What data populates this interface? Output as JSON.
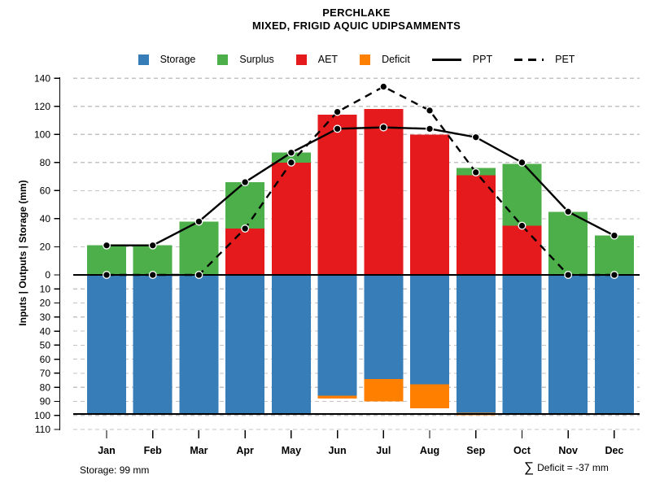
{
  "title": {
    "line1": "PERCHLAKE",
    "line2": "MIXED, FRIGID AQUIC UDIPSAMMENTS"
  },
  "legend": {
    "items": [
      {
        "label": "Storage",
        "swatch": "box",
        "color": "#377EB8"
      },
      {
        "label": "Surplus",
        "swatch": "box",
        "color": "#4DAF4A"
      },
      {
        "label": "AET",
        "swatch": "box",
        "color": "#E41A1C"
      },
      {
        "label": "Deficit",
        "swatch": "box",
        "color": "#FF7F00"
      },
      {
        "label": "PPT",
        "swatch": "line-solid",
        "color": "#000000"
      },
      {
        "label": "PET",
        "swatch": "line-dashed",
        "color": "#000000"
      }
    ]
  },
  "y_axis": {
    "label": "Inputs | Outputs | Storage   (mm)",
    "upper_ticks": [
      140,
      120,
      100,
      80,
      60,
      40,
      20
    ],
    "lower_ticks": [
      0,
      10,
      20,
      30,
      40,
      50,
      60,
      70,
      80,
      90,
      100,
      110
    ]
  },
  "footer": {
    "storage_note": "Storage: 99 mm",
    "deficit_sigma": "∑",
    "deficit_note": "Deficit = -37 mm"
  },
  "chart_data": {
    "type": "bar+line monthly water balance",
    "title": "PERCHLAKE",
    "subtitle": "MIXED, FRIGID AQUIC UDIPSAMMENTS",
    "ylabel": "Inputs | Outputs | Storage   (mm)",
    "units": "mm",
    "ylim": [
      -110,
      140
    ],
    "grid": "horizontal dashed",
    "legend_position": "top",
    "categories": [
      "Jan",
      "Feb",
      "Mar",
      "Apr",
      "May",
      "Jun",
      "Jul",
      "Aug",
      "Sep",
      "Oct",
      "Nov",
      "Dec"
    ],
    "series": [
      {
        "name": "AET",
        "type": "bar",
        "stack": "positive",
        "color": "#E41A1C",
        "values": [
          0,
          0,
          0,
          33,
          80,
          114,
          118,
          100,
          71,
          35,
          0,
          0
        ]
      },
      {
        "name": "Surplus",
        "type": "bar",
        "stack": "positive",
        "color": "#4DAF4A",
        "values": [
          21,
          21,
          38,
          33,
          7,
          0,
          0,
          0,
          5,
          44,
          45,
          28
        ]
      },
      {
        "name": "Storage",
        "type": "bar",
        "stack": "negative",
        "color": "#377EB8",
        "values": [
          99,
          99,
          99,
          99,
          99,
          86,
          74,
          78,
          98,
          99,
          99,
          99
        ]
      },
      {
        "name": "Deficit",
        "type": "bar",
        "stack": "negative",
        "color": "#FF7F00",
        "values": [
          0,
          0,
          0,
          0,
          0,
          2,
          16,
          17,
          2,
          0,
          0,
          0
        ]
      },
      {
        "name": "PPT",
        "type": "line",
        "style": "solid",
        "marker": "circle",
        "color": "#000000",
        "values": [
          21,
          21,
          38,
          66,
          87,
          104,
          105,
          104,
          98,
          80,
          45,
          28
        ]
      },
      {
        "name": "PET",
        "type": "line",
        "style": "dashed",
        "marker": "circle",
        "color": "#000000",
        "values": [
          0,
          0,
          0,
          33,
          80,
          116,
          134,
          117,
          73,
          35,
          0,
          0
        ]
      }
    ],
    "reference_lines": [
      0,
      -99
    ],
    "storage_capacity_mm": 99,
    "total_deficit_mm": -37
  }
}
